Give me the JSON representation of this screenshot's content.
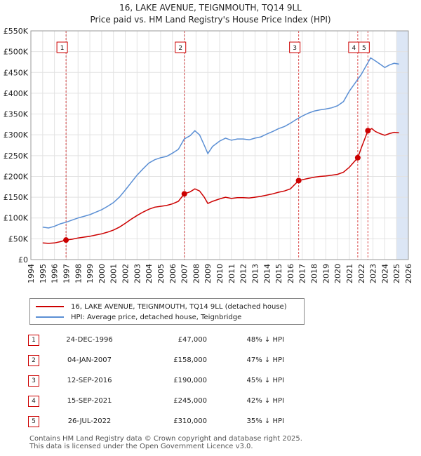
{
  "page": {
    "title_line1": "16, LAKE AVENUE, TEIGNMOUTH, TQ14 9LL",
    "title_line2": "Price paid vs. HM Land Registry's House Price Index (HPI)",
    "footer_line1": "Contains HM Land Registry data © Crown copyright and database right 2025.",
    "footer_line2": "This data is licensed under the Open Government Licence v3.0."
  },
  "colors": {
    "price": "#cc0000",
    "hpi": "#5b8fd4",
    "band": "#dce6f5"
  },
  "legend": {
    "price_label": "16, LAKE AVENUE, TEIGNMOUTH, TQ14 9LL (detached house)",
    "hpi_label": "HPI: Average price, detached house, Teignbridge"
  },
  "transactions": [
    {
      "num": "1",
      "date": "24-DEC-1996",
      "price": "£47,000",
      "hpi": "48% ↓ HPI"
    },
    {
      "num": "2",
      "date": "04-JAN-2007",
      "price": "£158,000",
      "hpi": "47% ↓ HPI"
    },
    {
      "num": "3",
      "date": "12-SEP-2016",
      "price": "£190,000",
      "hpi": "45% ↓ HPI"
    },
    {
      "num": "4",
      "date": "15-SEP-2021",
      "price": "£245,000",
      "hpi": "42% ↓ HPI"
    },
    {
      "num": "5",
      "date": "26-JUL-2022",
      "price": "£310,000",
      "hpi": "35% ↓ HPI"
    }
  ],
  "chart_data": {
    "type": "line",
    "xlim": [
      1994,
      2026
    ],
    "ylim": [
      0,
      550000
    ],
    "x_ticks": [
      1994,
      1995,
      1996,
      1997,
      1998,
      1999,
      2000,
      2001,
      2002,
      2003,
      2004,
      2005,
      2006,
      2007,
      2008,
      2009,
      2010,
      2011,
      2012,
      2013,
      2014,
      2015,
      2016,
      2017,
      2018,
      2019,
      2020,
      2021,
      2022,
      2023,
      2024,
      2025,
      2026
    ],
    "y_ticks": [
      {
        "v": 0,
        "label": "£0"
      },
      {
        "v": 50000,
        "label": "£50K"
      },
      {
        "v": 100000,
        "label": "£100K"
      },
      {
        "v": 150000,
        "label": "£150K"
      },
      {
        "v": 200000,
        "label": "£200K"
      },
      {
        "v": 250000,
        "label": "£250K"
      },
      {
        "v": 300000,
        "label": "£300K"
      },
      {
        "v": 350000,
        "label": "£350K"
      },
      {
        "v": 400000,
        "label": "£400K"
      },
      {
        "v": 450000,
        "label": "£450K"
      },
      {
        "v": 500000,
        "label": "£500K"
      },
      {
        "v": 550000,
        "label": "£550K"
      }
    ],
    "grid": true,
    "series": [
      {
        "name": "HPI: Average price, detached house, Teignbridge",
        "points": [
          [
            1995.0,
            78000
          ],
          [
            1995.5,
            76000
          ],
          [
            1996.0,
            80000
          ],
          [
            1996.5,
            86000
          ],
          [
            1997.0,
            90000
          ],
          [
            1997.5,
            95000
          ],
          [
            1998.0,
            100000
          ],
          [
            1998.5,
            104000
          ],
          [
            1999.0,
            108000
          ],
          [
            1999.5,
            114000
          ],
          [
            2000.0,
            120000
          ],
          [
            2000.5,
            128000
          ],
          [
            2001.0,
            137000
          ],
          [
            2001.5,
            150000
          ],
          [
            2002.0,
            167000
          ],
          [
            2002.5,
            185000
          ],
          [
            2003.0,
            203000
          ],
          [
            2003.5,
            218000
          ],
          [
            2004.0,
            232000
          ],
          [
            2004.5,
            240000
          ],
          [
            2005.0,
            245000
          ],
          [
            2005.5,
            248000
          ],
          [
            2006.0,
            256000
          ],
          [
            2006.5,
            265000
          ],
          [
            2007.0,
            290000
          ],
          [
            2007.5,
            298000
          ],
          [
            2007.9,
            310000
          ],
          [
            2008.3,
            300000
          ],
          [
            2008.7,
            275000
          ],
          [
            2009.0,
            255000
          ],
          [
            2009.4,
            272000
          ],
          [
            2010.0,
            285000
          ],
          [
            2010.5,
            292000
          ],
          [
            2011.0,
            287000
          ],
          [
            2011.5,
            290000
          ],
          [
            2012.0,
            290000
          ],
          [
            2012.5,
            288000
          ],
          [
            2013.0,
            292000
          ],
          [
            2013.5,
            295000
          ],
          [
            2014.0,
            302000
          ],
          [
            2014.5,
            308000
          ],
          [
            2015.0,
            315000
          ],
          [
            2015.5,
            320000
          ],
          [
            2016.0,
            328000
          ],
          [
            2016.5,
            337000
          ],
          [
            2017.0,
            345000
          ],
          [
            2017.5,
            352000
          ],
          [
            2018.0,
            357000
          ],
          [
            2018.5,
            360000
          ],
          [
            2019.0,
            362000
          ],
          [
            2019.5,
            365000
          ],
          [
            2020.0,
            370000
          ],
          [
            2020.5,
            380000
          ],
          [
            2021.0,
            405000
          ],
          [
            2021.5,
            425000
          ],
          [
            2022.0,
            445000
          ],
          [
            2022.4,
            465000
          ],
          [
            2022.8,
            485000
          ],
          [
            2023.2,
            478000
          ],
          [
            2023.6,
            470000
          ],
          [
            2024.0,
            462000
          ],
          [
            2024.4,
            468000
          ],
          [
            2024.8,
            472000
          ],
          [
            2025.2,
            470000
          ]
        ]
      },
      {
        "name": "16, LAKE AVENUE, TEIGNMOUTH, TQ14 9LL (detached house)",
        "points": [
          [
            1995.0,
            40000
          ],
          [
            1995.5,
            39000
          ],
          [
            1996.0,
            40000
          ],
          [
            1996.5,
            43000
          ],
          [
            1996.98,
            47000
          ],
          [
            1997.5,
            49000
          ],
          [
            1998.0,
            52000
          ],
          [
            1998.5,
            54000
          ],
          [
            1999.0,
            56000
          ],
          [
            1999.5,
            59000
          ],
          [
            2000.0,
            62000
          ],
          [
            2000.5,
            66000
          ],
          [
            2001.0,
            71000
          ],
          [
            2001.5,
            78000
          ],
          [
            2002.0,
            87000
          ],
          [
            2002.5,
            97000
          ],
          [
            2003.0,
            106000
          ],
          [
            2003.5,
            114000
          ],
          [
            2004.0,
            121000
          ],
          [
            2004.5,
            126000
          ],
          [
            2005.0,
            128000
          ],
          [
            2005.5,
            130000
          ],
          [
            2006.0,
            134000
          ],
          [
            2006.5,
            140000
          ],
          [
            2007.01,
            158000
          ],
          [
            2007.5,
            163000
          ],
          [
            2007.9,
            170000
          ],
          [
            2008.3,
            165000
          ],
          [
            2008.7,
            150000
          ],
          [
            2009.0,
            135000
          ],
          [
            2009.4,
            140000
          ],
          [
            2010.0,
            146000
          ],
          [
            2010.5,
            150000
          ],
          [
            2011.0,
            147000
          ],
          [
            2011.5,
            149000
          ],
          [
            2012.0,
            149000
          ],
          [
            2012.5,
            148000
          ],
          [
            2013.0,
            150000
          ],
          [
            2013.5,
            152000
          ],
          [
            2014.0,
            155000
          ],
          [
            2014.5,
            158000
          ],
          [
            2015.0,
            162000
          ],
          [
            2015.5,
            165000
          ],
          [
            2016.0,
            170000
          ],
          [
            2016.7,
            190000
          ],
          [
            2017.0,
            192000
          ],
          [
            2017.5,
            195000
          ],
          [
            2018.0,
            198000
          ],
          [
            2018.5,
            200000
          ],
          [
            2019.0,
            201000
          ],
          [
            2019.5,
            203000
          ],
          [
            2020.0,
            205000
          ],
          [
            2020.5,
            210000
          ],
          [
            2021.0,
            222000
          ],
          [
            2021.71,
            245000
          ],
          [
            2022.0,
            268000
          ],
          [
            2022.3,
            290000
          ],
          [
            2022.57,
            310000
          ],
          [
            2022.9,
            315000
          ],
          [
            2023.2,
            308000
          ],
          [
            2023.6,
            303000
          ],
          [
            2024.0,
            299000
          ],
          [
            2024.4,
            303000
          ],
          [
            2024.8,
            306000
          ],
          [
            2025.2,
            305000
          ]
        ]
      }
    ],
    "sales": [
      {
        "num": "1",
        "x": 1996.98,
        "y": 47000
      },
      {
        "num": "2",
        "x": 2007.01,
        "y": 158000
      },
      {
        "num": "3",
        "x": 2016.7,
        "y": 190000
      },
      {
        "num": "4",
        "x": 2021.71,
        "y": 245000
      },
      {
        "num": "5",
        "x": 2022.57,
        "y": 310000
      }
    ],
    "highlight_range": [
      2025.0,
      2026.0
    ]
  }
}
